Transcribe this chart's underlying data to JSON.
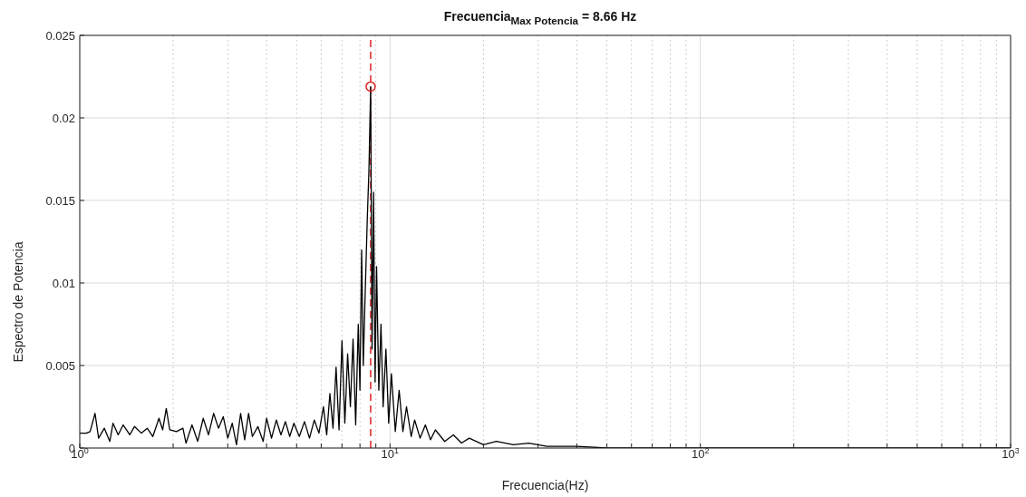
{
  "chart_data": {
    "type": "line",
    "title": "Frecuencia$_{Max Potencia}$ = 8.66 Hz",
    "xlabel": "Frecuencia(Hz)",
    "ylabel": "Espectro de Potencia",
    "log": "x",
    "grid": true,
    "xlim": [
      1,
      1000
    ],
    "ylim": [
      0,
      0.025
    ],
    "xticks": [
      {
        "value": 1,
        "label": "10$^{0}$"
      },
      {
        "value": 2,
        "label": null
      },
      {
        "value": 3,
        "label": null
      },
      {
        "value": 4,
        "label": null
      },
      {
        "value": 5,
        "label": null
      },
      {
        "value": 6,
        "label": null
      },
      {
        "value": 7,
        "label": null
      },
      {
        "value": 8,
        "label": null
      },
      {
        "value": 9,
        "label": null
      },
      {
        "value": 10,
        "label": "10$^{1}$"
      },
      {
        "value": 20,
        "label": null
      },
      {
        "value": 30,
        "label": null
      },
      {
        "value": 40,
        "label": null
      },
      {
        "value": 50,
        "label": null
      },
      {
        "value": 60,
        "label": null
      },
      {
        "value": 70,
        "label": null
      },
      {
        "value": 80,
        "label": null
      },
      {
        "value": 90,
        "label": null
      },
      {
        "value": 100,
        "label": "10$^{2}$"
      },
      {
        "value": 200,
        "label": null
      },
      {
        "value": 300,
        "label": null
      },
      {
        "value": 400,
        "label": null
      },
      {
        "value": 500,
        "label": null
      },
      {
        "value": 600,
        "label": null
      },
      {
        "value": 700,
        "label": null
      },
      {
        "value": 800,
        "label": null
      },
      {
        "value": 900,
        "label": null
      },
      {
        "value": 1000,
        "label": "10$^{3}$"
      }
    ],
    "yticks": [
      0,
      0.005,
      0.01,
      0.015,
      0.02,
      0.025
    ],
    "series": [
      {
        "type": "line",
        "color": "#000000",
        "marker": "none",
        "x": [
          1.0,
          1.05,
          1.08,
          1.12,
          1.15,
          1.2,
          1.25,
          1.28,
          1.33,
          1.38,
          1.45,
          1.5,
          1.58,
          1.65,
          1.72,
          1.8,
          1.85,
          1.9,
          1.95,
          2.05,
          2.15,
          2.2,
          2.3,
          2.4,
          2.5,
          2.6,
          2.7,
          2.8,
          2.9,
          3.0,
          3.1,
          3.2,
          3.3,
          3.4,
          3.5,
          3.6,
          3.75,
          3.9,
          4.0,
          4.15,
          4.3,
          4.45,
          4.6,
          4.75,
          4.9,
          5.1,
          5.3,
          5.5,
          5.7,
          5.9,
          6.1,
          6.25,
          6.4,
          6.55,
          6.7,
          6.85,
          7.0,
          7.15,
          7.3,
          7.45,
          7.6,
          7.75,
          7.9,
          8.0,
          8.1,
          8.2,
          8.3,
          8.45,
          8.55,
          8.66,
          8.75,
          8.85,
          8.95,
          9.05,
          9.2,
          9.35,
          9.5,
          9.7,
          9.9,
          10.1,
          10.4,
          10.7,
          11.0,
          11.3,
          11.7,
          12.0,
          12.5,
          13.0,
          13.5,
          14,
          15,
          16,
          17,
          18,
          20,
          22,
          25,
          28,
          32,
          40,
          50,
          70,
          100,
          200,
          500,
          1000
        ],
        "values": [
          0.0009,
          0.0009,
          0.001,
          0.0021,
          0.0006,
          0.0012,
          0.0004,
          0.0015,
          0.0008,
          0.0014,
          0.0008,
          0.0013,
          0.0009,
          0.0012,
          0.0007,
          0.0018,
          0.0011,
          0.0024,
          0.0011,
          0.001,
          0.0012,
          0.0003,
          0.0014,
          0.0004,
          0.0018,
          0.0008,
          0.0021,
          0.0012,
          0.0019,
          0.0006,
          0.0015,
          0.0002,
          0.0021,
          0.0005,
          0.0021,
          0.0007,
          0.0013,
          0.0004,
          0.0018,
          0.0006,
          0.0017,
          0.0008,
          0.0016,
          0.0007,
          0.0015,
          0.0007,
          0.0016,
          0.0006,
          0.0017,
          0.0009,
          0.0025,
          0.0008,
          0.0033,
          0.0012,
          0.0049,
          0.0011,
          0.0065,
          0.0015,
          0.0057,
          0.0025,
          0.0066,
          0.0014,
          0.0075,
          0.0035,
          0.012,
          0.005,
          0.0088,
          0.014,
          0.0168,
          0.0219,
          0.006,
          0.0155,
          0.004,
          0.011,
          0.0035,
          0.0075,
          0.0025,
          0.006,
          0.0015,
          0.0045,
          0.001,
          0.0035,
          0.001,
          0.0025,
          0.0007,
          0.0017,
          0.0006,
          0.0014,
          0.0005,
          0.0011,
          0.0004,
          0.0008,
          0.0003,
          0.0006,
          0.0002,
          0.0004,
          0.0002,
          0.0003,
          0.0001,
          0.0001,
          0,
          0,
          0,
          0,
          0,
          0
        ]
      },
      {
        "type": "scatter",
        "color": "#e02020",
        "marker": "circle",
        "x": [
          8.66
        ],
        "values": [
          0.0219
        ]
      }
    ],
    "ref_lines": [
      {
        "axis": "x",
        "value": 8.66,
        "color": "#e02020",
        "line_style": "dashed"
      }
    ]
  }
}
